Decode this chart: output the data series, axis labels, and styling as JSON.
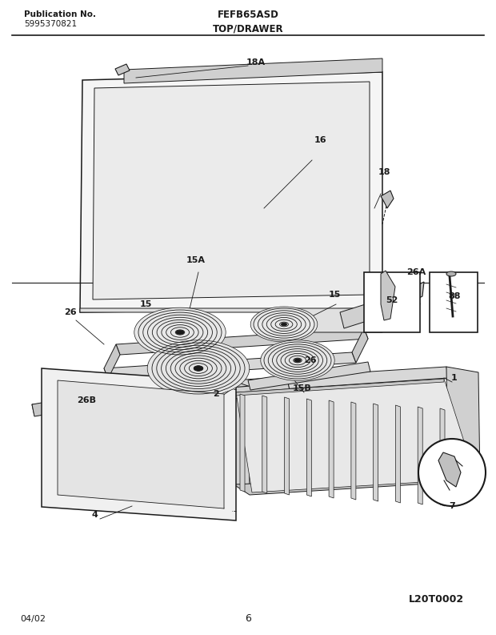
{
  "title_center": "FEFB65ASD",
  "title_section": "TOP/DRAWER",
  "pub_no_label": "Publication No.",
  "pub_no_value": "5995370821",
  "date_label": "04/02",
  "page_number": "6",
  "diagram_id": "L20T0002",
  "bg_color": "#ffffff",
  "line_color": "#1a1a1a",
  "figsize": [
    6.2,
    7.93
  ],
  "dpi": 100
}
